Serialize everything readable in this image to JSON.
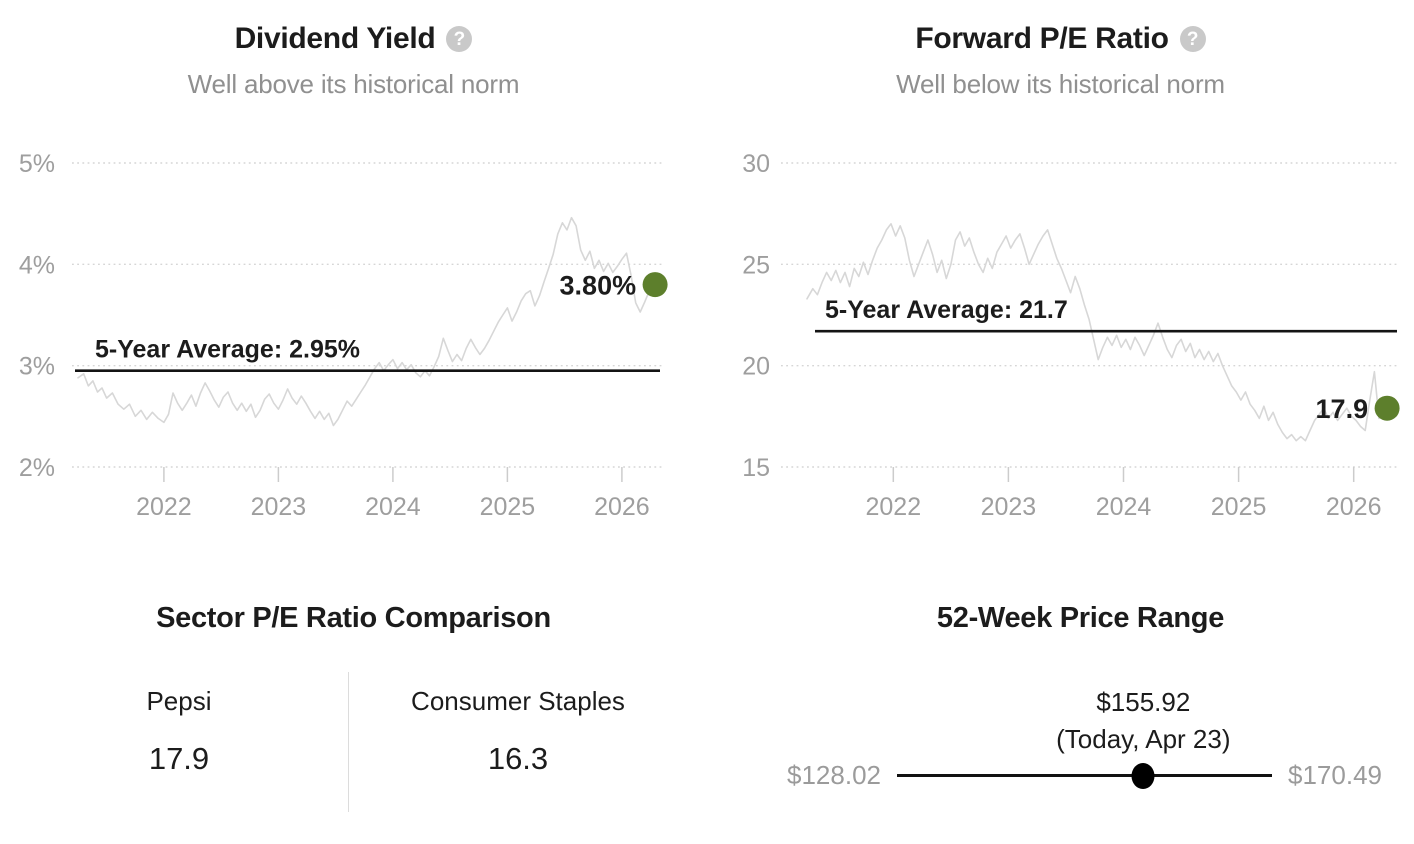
{
  "help_glyph": "?",
  "colors": {
    "background": "#ffffff",
    "title": "#1c1c1c",
    "subtitle": "#909090",
    "axis_label": "#9e9e9e",
    "grid": "#d6d6d6",
    "tick": "#cccccc",
    "series_line": "#d7d7d7",
    "average_line": "#141414",
    "marker": "#5d7f2c",
    "range_track": "#111111",
    "range_dot": "#000000",
    "range_side_label": "#9b9b9b",
    "divider": "#dcdcdc"
  },
  "chart_data": [
    {
      "type": "line",
      "title": "Dividend Yield",
      "subtitle": "Well above its historical norm",
      "help_icon": "question-mark",
      "ylim": [
        2,
        5
      ],
      "xlim": [
        2021.25,
        2026.35
      ],
      "yticks": [
        {
          "value": 5,
          "label": "5%"
        },
        {
          "value": 4,
          "label": "4%"
        },
        {
          "value": 3,
          "label": "3%"
        },
        {
          "value": 2,
          "label": "2%"
        }
      ],
      "xticks": [
        {
          "value": 2022,
          "label": "2022"
        },
        {
          "value": 2023,
          "label": "2023"
        },
        {
          "value": 2024,
          "label": "2024"
        },
        {
          "value": 2025,
          "label": "2025"
        },
        {
          "value": 2026,
          "label": "2026"
        }
      ],
      "grid": true,
      "average": {
        "value": 2.95,
        "label": "5-Year Average: 2.95%"
      },
      "current": {
        "value": 3.8,
        "label": "3.80%"
      },
      "series": [
        [
          2021.25,
          2.88
        ],
        [
          2021.3,
          2.92
        ],
        [
          2021.34,
          2.8
        ],
        [
          2021.38,
          2.85
        ],
        [
          2021.42,
          2.74
        ],
        [
          2021.46,
          2.78
        ],
        [
          2021.5,
          2.68
        ],
        [
          2021.55,
          2.73
        ],
        [
          2021.6,
          2.62
        ],
        [
          2021.65,
          2.57
        ],
        [
          2021.7,
          2.62
        ],
        [
          2021.75,
          2.5
        ],
        [
          2021.8,
          2.56
        ],
        [
          2021.85,
          2.47
        ],
        [
          2021.9,
          2.54
        ],
        [
          2021.95,
          2.48
        ],
        [
          2022,
          2.44
        ],
        [
          2022.04,
          2.52
        ],
        [
          2022.08,
          2.73
        ],
        [
          2022.12,
          2.63
        ],
        [
          2022.16,
          2.56
        ],
        [
          2022.2,
          2.63
        ],
        [
          2022.24,
          2.71
        ],
        [
          2022.28,
          2.6
        ],
        [
          2022.32,
          2.73
        ],
        [
          2022.36,
          2.83
        ],
        [
          2022.4,
          2.75
        ],
        [
          2022.44,
          2.66
        ],
        [
          2022.48,
          2.59
        ],
        [
          2022.52,
          2.69
        ],
        [
          2022.56,
          2.74
        ],
        [
          2022.6,
          2.63
        ],
        [
          2022.64,
          2.56
        ],
        [
          2022.68,
          2.63
        ],
        [
          2022.72,
          2.55
        ],
        [
          2022.76,
          2.62
        ],
        [
          2022.8,
          2.49
        ],
        [
          2022.84,
          2.56
        ],
        [
          2022.88,
          2.67
        ],
        [
          2022.92,
          2.72
        ],
        [
          2022.96,
          2.63
        ],
        [
          2023,
          2.57
        ],
        [
          2023.04,
          2.66
        ],
        [
          2023.08,
          2.77
        ],
        [
          2023.12,
          2.68
        ],
        [
          2023.16,
          2.62
        ],
        [
          2023.2,
          2.7
        ],
        [
          2023.24,
          2.63
        ],
        [
          2023.28,
          2.55
        ],
        [
          2023.32,
          2.48
        ],
        [
          2023.36,
          2.55
        ],
        [
          2023.4,
          2.47
        ],
        [
          2023.44,
          2.53
        ],
        [
          2023.48,
          2.41
        ],
        [
          2023.52,
          2.47
        ],
        [
          2023.56,
          2.56
        ],
        [
          2023.6,
          2.65
        ],
        [
          2023.64,
          2.6
        ],
        [
          2023.68,
          2.67
        ],
        [
          2023.72,
          2.74
        ],
        [
          2023.76,
          2.81
        ],
        [
          2023.8,
          2.89
        ],
        [
          2023.84,
          2.97
        ],
        [
          2023.88,
          3.03
        ],
        [
          2023.92,
          2.95
        ],
        [
          2023.96,
          3.01
        ],
        [
          2024,
          3.06
        ],
        [
          2024.04,
          2.97
        ],
        [
          2024.08,
          3.03
        ],
        [
          2024.12,
          2.96
        ],
        [
          2024.16,
          3.01
        ],
        [
          2024.2,
          2.93
        ],
        [
          2024.24,
          2.89
        ],
        [
          2024.28,
          2.95
        ],
        [
          2024.32,
          2.9
        ],
        [
          2024.36,
          2.99
        ],
        [
          2024.4,
          3.09
        ],
        [
          2024.44,
          3.27
        ],
        [
          2024.48,
          3.15
        ],
        [
          2024.52,
          3.04
        ],
        [
          2024.56,
          3.11
        ],
        [
          2024.6,
          3.05
        ],
        [
          2024.64,
          3.17
        ],
        [
          2024.68,
          3.26
        ],
        [
          2024.72,
          3.18
        ],
        [
          2024.76,
          3.11
        ],
        [
          2024.8,
          3.17
        ],
        [
          2024.84,
          3.25
        ],
        [
          2024.88,
          3.34
        ],
        [
          2024.92,
          3.43
        ],
        [
          2024.96,
          3.5
        ],
        [
          2025,
          3.57
        ],
        [
          2025.04,
          3.44
        ],
        [
          2025.08,
          3.53
        ],
        [
          2025.12,
          3.64
        ],
        [
          2025.16,
          3.71
        ],
        [
          2025.2,
          3.74
        ],
        [
          2025.24,
          3.59
        ],
        [
          2025.28,
          3.69
        ],
        [
          2025.32,
          3.83
        ],
        [
          2025.36,
          3.96
        ],
        [
          2025.4,
          4.1
        ],
        [
          2025.44,
          4.3
        ],
        [
          2025.48,
          4.41
        ],
        [
          2025.52,
          4.34
        ],
        [
          2025.56,
          4.46
        ],
        [
          2025.6,
          4.38
        ],
        [
          2025.64,
          4.14
        ],
        [
          2025.68,
          4.04
        ],
        [
          2025.72,
          4.13
        ],
        [
          2025.76,
          3.96
        ],
        [
          2025.8,
          4.04
        ],
        [
          2025.84,
          3.93
        ],
        [
          2025.88,
          4.01
        ],
        [
          2025.92,
          3.92
        ],
        [
          2025.96,
          3.98
        ],
        [
          2026,
          4.05
        ],
        [
          2026.04,
          4.11
        ],
        [
          2026.08,
          3.89
        ],
        [
          2026.12,
          3.62
        ],
        [
          2026.16,
          3.53
        ],
        [
          2026.2,
          3.63
        ],
        [
          2026.24,
          3.74
        ],
        [
          2026.29,
          3.8
        ]
      ]
    },
    {
      "type": "line",
      "title": "Forward P/E Ratio",
      "subtitle": "Well below its historical norm",
      "help_icon": "question-mark",
      "ylim": [
        15,
        30
      ],
      "xlim": [
        2021.25,
        2026.35
      ],
      "yticks": [
        {
          "value": 30,
          "label": "30"
        },
        {
          "value": 25,
          "label": "25"
        },
        {
          "value": 20,
          "label": "20"
        },
        {
          "value": 15,
          "label": "15"
        }
      ],
      "xticks": [
        {
          "value": 2022,
          "label": "2022"
        },
        {
          "value": 2023,
          "label": "2023"
        },
        {
          "value": 2024,
          "label": "2024"
        },
        {
          "value": 2025,
          "label": "2025"
        },
        {
          "value": 2026,
          "label": "2026"
        }
      ],
      "grid": true,
      "average": {
        "value": 21.7,
        "label": "5-Year Average: 21.7"
      },
      "current": {
        "value": 17.9,
        "label": "17.9"
      },
      "series": [
        [
          2021.25,
          23.3
        ],
        [
          2021.3,
          23.8
        ],
        [
          2021.34,
          23.5
        ],
        [
          2021.38,
          24.1
        ],
        [
          2021.42,
          24.6
        ],
        [
          2021.46,
          24.2
        ],
        [
          2021.5,
          24.7
        ],
        [
          2021.54,
          24.1
        ],
        [
          2021.58,
          24.6
        ],
        [
          2021.62,
          23.9
        ],
        [
          2021.66,
          24.8
        ],
        [
          2021.7,
          24.4
        ],
        [
          2021.74,
          25.1
        ],
        [
          2021.78,
          24.5
        ],
        [
          2021.82,
          25.2
        ],
        [
          2021.86,
          25.8
        ],
        [
          2021.9,
          26.2
        ],
        [
          2021.94,
          26.7
        ],
        [
          2021.98,
          27
        ],
        [
          2022.02,
          26.4
        ],
        [
          2022.06,
          26.9
        ],
        [
          2022.1,
          26.3
        ],
        [
          2022.14,
          25.2
        ],
        [
          2022.18,
          24.4
        ],
        [
          2022.22,
          25
        ],
        [
          2022.26,
          25.6
        ],
        [
          2022.3,
          26.2
        ],
        [
          2022.34,
          25.5
        ],
        [
          2022.38,
          24.6
        ],
        [
          2022.42,
          25.2
        ],
        [
          2022.46,
          24.3
        ],
        [
          2022.5,
          25
        ],
        [
          2022.54,
          26.2
        ],
        [
          2022.58,
          26.6
        ],
        [
          2022.62,
          25.9
        ],
        [
          2022.66,
          26.3
        ],
        [
          2022.7,
          25.6
        ],
        [
          2022.74,
          25
        ],
        [
          2022.78,
          24.6
        ],
        [
          2022.82,
          25.3
        ],
        [
          2022.86,
          24.8
        ],
        [
          2022.9,
          25.6
        ],
        [
          2022.94,
          26
        ],
        [
          2022.98,
          26.4
        ],
        [
          2023.02,
          25.8
        ],
        [
          2023.06,
          26.2
        ],
        [
          2023.1,
          26.5
        ],
        [
          2023.14,
          25.8
        ],
        [
          2023.18,
          25
        ],
        [
          2023.22,
          25.5
        ],
        [
          2023.26,
          26
        ],
        [
          2023.3,
          26.4
        ],
        [
          2023.34,
          26.7
        ],
        [
          2023.38,
          26
        ],
        [
          2023.42,
          25.3
        ],
        [
          2023.46,
          24.8
        ],
        [
          2023.5,
          24.2
        ],
        [
          2023.54,
          23.6
        ],
        [
          2023.58,
          24.4
        ],
        [
          2023.62,
          23.8
        ],
        [
          2023.66,
          23
        ],
        [
          2023.7,
          22.3
        ],
        [
          2023.74,
          21.3
        ],
        [
          2023.78,
          20.3
        ],
        [
          2023.82,
          20.9
        ],
        [
          2023.86,
          21.4
        ],
        [
          2023.9,
          21
        ],
        [
          2023.94,
          21.5
        ],
        [
          2023.98,
          20.9
        ],
        [
          2024.02,
          21.3
        ],
        [
          2024.06,
          20.8
        ],
        [
          2024.1,
          21.4
        ],
        [
          2024.14,
          21
        ],
        [
          2024.18,
          20.5
        ],
        [
          2024.22,
          21
        ],
        [
          2024.26,
          21.5
        ],
        [
          2024.3,
          22.1
        ],
        [
          2024.34,
          21.4
        ],
        [
          2024.38,
          20.8
        ],
        [
          2024.42,
          20.4
        ],
        [
          2024.46,
          21
        ],
        [
          2024.5,
          21.3
        ],
        [
          2024.54,
          20.7
        ],
        [
          2024.58,
          21.1
        ],
        [
          2024.62,
          20.4
        ],
        [
          2024.66,
          20.8
        ],
        [
          2024.7,
          20.3
        ],
        [
          2024.74,
          20.7
        ],
        [
          2024.78,
          20.2
        ],
        [
          2024.82,
          20.6
        ],
        [
          2024.86,
          20
        ],
        [
          2024.9,
          19.5
        ],
        [
          2024.94,
          19
        ],
        [
          2024.98,
          18.7
        ],
        [
          2025.02,
          18.3
        ],
        [
          2025.06,
          18.7
        ],
        [
          2025.1,
          18.1
        ],
        [
          2025.14,
          17.8
        ],
        [
          2025.18,
          17.4
        ],
        [
          2025.22,
          18
        ],
        [
          2025.26,
          17.3
        ],
        [
          2025.3,
          17.7
        ],
        [
          2025.34,
          17.1
        ],
        [
          2025.38,
          16.7
        ],
        [
          2025.42,
          16.4
        ],
        [
          2025.46,
          16.6
        ],
        [
          2025.5,
          16.3
        ],
        [
          2025.54,
          16.5
        ],
        [
          2025.58,
          16.3
        ],
        [
          2025.62,
          16.8
        ],
        [
          2025.66,
          17.3
        ],
        [
          2025.7,
          17.6
        ],
        [
          2025.74,
          17.9
        ],
        [
          2025.78,
          17.4
        ],
        [
          2025.82,
          17.7
        ],
        [
          2025.86,
          17.3
        ],
        [
          2025.9,
          17.6
        ],
        [
          2025.94,
          17.9
        ],
        [
          2025.98,
          17.5
        ],
        [
          2026.02,
          17.3
        ],
        [
          2026.06,
          17
        ],
        [
          2026.1,
          16.8
        ],
        [
          2026.14,
          18.3
        ],
        [
          2026.18,
          19.7
        ],
        [
          2026.22,
          17.4
        ],
        [
          2026.26,
          17.6
        ],
        [
          2026.29,
          17.9
        ]
      ]
    },
    {
      "type": "table",
      "title": "Sector P/E Ratio Comparison",
      "columns": [
        {
          "label": "Pepsi",
          "value": "17.9"
        },
        {
          "label": "Consumer Staples",
          "value": "16.3"
        }
      ]
    },
    {
      "type": "range",
      "title": "52-Week Price Range",
      "low": 128.02,
      "high": 170.49,
      "current": 155.92,
      "low_label": "$128.02",
      "high_label": "$170.49",
      "current_label": "$155.92",
      "current_sub": "(Today, Apr 23)"
    }
  ]
}
